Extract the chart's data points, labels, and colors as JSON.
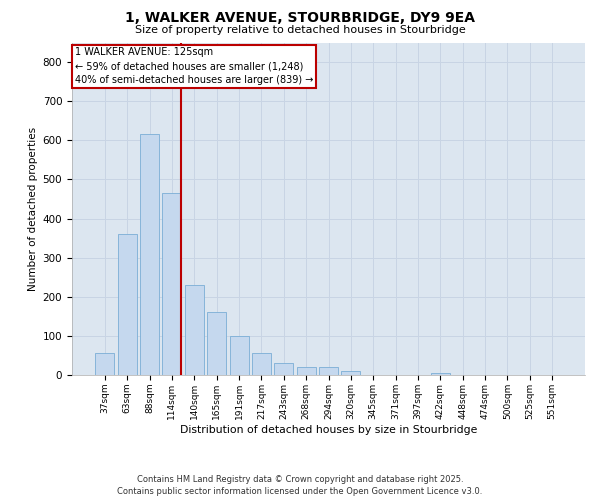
{
  "title_line1": "1, WALKER AVENUE, STOURBRIDGE, DY9 9EA",
  "title_line2": "Size of property relative to detached houses in Stourbridge",
  "xlabel": "Distribution of detached houses by size in Stourbridge",
  "ylabel": "Number of detached properties",
  "categories": [
    "37sqm",
    "63sqm",
    "88sqm",
    "114sqm",
    "140sqm",
    "165sqm",
    "191sqm",
    "217sqm",
    "243sqm",
    "268sqm",
    "294sqm",
    "320sqm",
    "345sqm",
    "371sqm",
    "397sqm",
    "422sqm",
    "448sqm",
    "474sqm",
    "500sqm",
    "525sqm",
    "551sqm"
  ],
  "values": [
    55,
    360,
    615,
    465,
    230,
    160,
    100,
    55,
    30,
    20,
    20,
    10,
    0,
    0,
    0,
    5,
    0,
    0,
    0,
    0,
    0
  ],
  "bar_color": "#c5d8ee",
  "bar_edge_color": "#7aaed6",
  "vline_color": "#bb0000",
  "annotation_text": "1 WALKER AVENUE: 125sqm\n← 59% of detached houses are smaller (1,248)\n40% of semi-detached houses are larger (839) →",
  "grid_color": "#c8d4e4",
  "bg_color": "#dce6f0",
  "footnote": "Contains HM Land Registry data © Crown copyright and database right 2025.\nContains public sector information licensed under the Open Government Licence v3.0.",
  "ylim_max": 850,
  "yticks": [
    0,
    100,
    200,
    300,
    400,
    500,
    600,
    700,
    800
  ]
}
